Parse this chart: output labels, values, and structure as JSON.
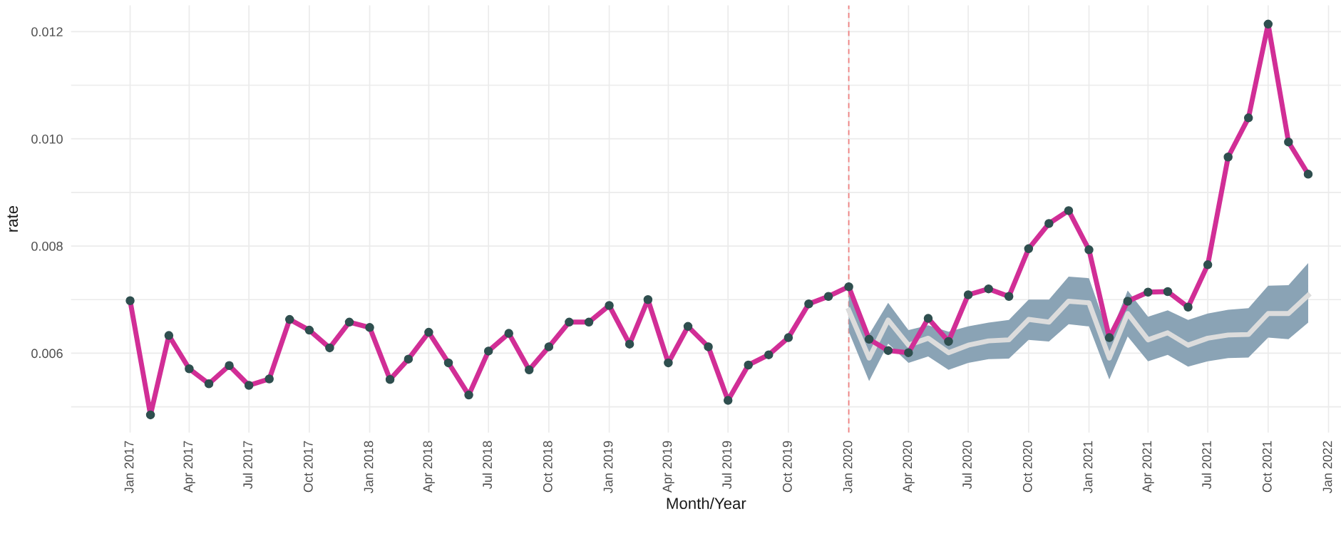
{
  "chart_data": {
    "type": "line",
    "xlabel": "Month/Year",
    "ylabel": "rate",
    "x": [
      "2017-01",
      "2017-02",
      "2017-03",
      "2017-04",
      "2017-05",
      "2017-06",
      "2017-07",
      "2017-08",
      "2017-09",
      "2017-10",
      "2017-11",
      "2017-12",
      "2018-01",
      "2018-02",
      "2018-03",
      "2018-04",
      "2018-05",
      "2018-06",
      "2018-07",
      "2018-08",
      "2018-09",
      "2018-10",
      "2018-11",
      "2018-12",
      "2019-01",
      "2019-02",
      "2019-03",
      "2019-04",
      "2019-05",
      "2019-06",
      "2019-07",
      "2019-08",
      "2019-09",
      "2019-10",
      "2019-11",
      "2019-12",
      "2020-01",
      "2020-02",
      "2020-03",
      "2020-04",
      "2020-05",
      "2020-06",
      "2020-07",
      "2020-08",
      "2020-09",
      "2020-10",
      "2020-11",
      "2020-12",
      "2021-01",
      "2021-02",
      "2021-03",
      "2021-04",
      "2021-05",
      "2021-06",
      "2021-07",
      "2021-08",
      "2021-09",
      "2021-10",
      "2021-11",
      "2021-12"
    ],
    "series": [
      {
        "color": "#d12e96",
        "values": [
          0.00698,
          0.00485,
          0.00633,
          0.00571,
          0.00543,
          0.00577,
          0.0054,
          0.00552,
          0.00663,
          0.00643,
          0.0061,
          0.00658,
          0.00648,
          0.00551,
          0.00589,
          0.00639,
          0.00582,
          0.00522,
          0.00604,
          0.00637,
          0.00569,
          0.00612,
          0.00658,
          0.00658,
          0.00689,
          0.00617,
          0.007,
          0.00582,
          0.0065,
          0.00612,
          0.00512,
          0.00578,
          0.00597,
          0.00629,
          0.00692,
          0.00706,
          0.00724,
          0.00626,
          0.00605,
          0.00601,
          0.00665,
          0.00622,
          0.00709,
          0.0072,
          0.00706,
          0.00795,
          0.00842,
          0.00866,
          0.00793,
          0.00629,
          0.00697,
          0.00714,
          0.00715,
          0.00686,
          0.00765,
          0.00966,
          0.01039,
          0.01214,
          0.00994,
          0.00934
        ]
      },
      {
        "color": "#dcdcdc",
        "marker": "none",
        "x": [
          "2020-01",
          "2020-02",
          "2020-03",
          "2020-04",
          "2020-05",
          "2020-06",
          "2020-07",
          "2020-08",
          "2020-09",
          "2020-10",
          "2020-11",
          "2020-12",
          "2021-01",
          "2021-02",
          "2021-03",
          "2021-04",
          "2021-05",
          "2021-06",
          "2021-07",
          "2021-08",
          "2021-09",
          "2021-10",
          "2021-11",
          "2021-12"
        ],
        "values": [
          0.0068,
          0.00591,
          0.00662,
          0.00615,
          0.00628,
          0.00601,
          0.00615,
          0.00623,
          0.00625,
          0.00663,
          0.00658,
          0.00697,
          0.00694,
          0.00591,
          0.00674,
          0.00625,
          0.00638,
          0.00615,
          0.00628,
          0.00634,
          0.00635,
          0.00674,
          0.00674,
          0.00708
        ],
        "lower": [
          0.0064,
          0.00548,
          0.00618,
          0.00582,
          0.00594,
          0.00569,
          0.00582,
          0.00589,
          0.0059,
          0.00625,
          0.00622,
          0.00654,
          0.0065,
          0.00551,
          0.00631,
          0.00585,
          0.00597,
          0.00575,
          0.00585,
          0.00591,
          0.00592,
          0.00629,
          0.00626,
          0.00657
        ],
        "upper": [
          0.0071,
          0.00635,
          0.00694,
          0.00643,
          0.00652,
          0.0064,
          0.0065,
          0.00657,
          0.00662,
          0.007,
          0.007,
          0.00743,
          0.0074,
          0.00631,
          0.00717,
          0.00668,
          0.0068,
          0.00662,
          0.00674,
          0.00681,
          0.00684,
          0.00726,
          0.00727,
          0.00768
        ]
      }
    ],
    "marker": "circle",
    "line_style": "solid",
    "xlim": [
      "2016-10-03",
      "2022-01-20"
    ],
    "xticks": [
      {
        "value": "2017-01",
        "label": "Jan 2017"
      },
      {
        "value": "2017-04",
        "label": "Apr 2017"
      },
      {
        "value": "2017-07",
        "label": "Jul 2017"
      },
      {
        "value": "2017-10",
        "label": "Oct 2017"
      },
      {
        "value": "2018-01",
        "label": "Jan 2018"
      },
      {
        "value": "2018-04",
        "label": "Apr 2018"
      },
      {
        "value": "2018-07",
        "label": "Jul 2018"
      },
      {
        "value": "2018-10",
        "label": "Oct 2018"
      },
      {
        "value": "2019-01",
        "label": "Jan 2019"
      },
      {
        "value": "2019-04",
        "label": "Apr 2019"
      },
      {
        "value": "2019-07",
        "label": "Jul 2019"
      },
      {
        "value": "2019-10",
        "label": "Oct 2019"
      },
      {
        "value": "2020-01",
        "label": "Jan 2020"
      },
      {
        "value": "2020-04",
        "label": "Apr 2020"
      },
      {
        "value": "2020-07",
        "label": "Jul 2020"
      },
      {
        "value": "2020-10",
        "label": "Oct 2020"
      },
      {
        "value": "2021-01",
        "label": "Jan 2021"
      },
      {
        "value": "2021-04",
        "label": "Apr 2021"
      },
      {
        "value": "2021-07",
        "label": "Jul 2021"
      },
      {
        "value": "2021-10",
        "label": "Oct 2021"
      },
      {
        "value": "2022-01",
        "label": "Jan 2022"
      }
    ],
    "ylim": [
      0.00452,
      0.01249
    ],
    "yticks": [
      {
        "value": 0.005,
        "label": null
      },
      {
        "value": 0.006,
        "label": "0.006"
      },
      {
        "value": 0.007,
        "label": null
      },
      {
        "value": 0.008,
        "label": "0.008"
      },
      {
        "value": 0.009,
        "label": null
      },
      {
        "value": 0.01,
        "label": "0.010"
      },
      {
        "value": 0.011,
        "label": null
      },
      {
        "value": 0.012,
        "label": "0.012"
      }
    ],
    "ref_lines": [
      {
        "axis": "x",
        "value": "2020-01",
        "color": "#f08080",
        "line_style": "dashed"
      }
    ],
    "grid": true
  }
}
